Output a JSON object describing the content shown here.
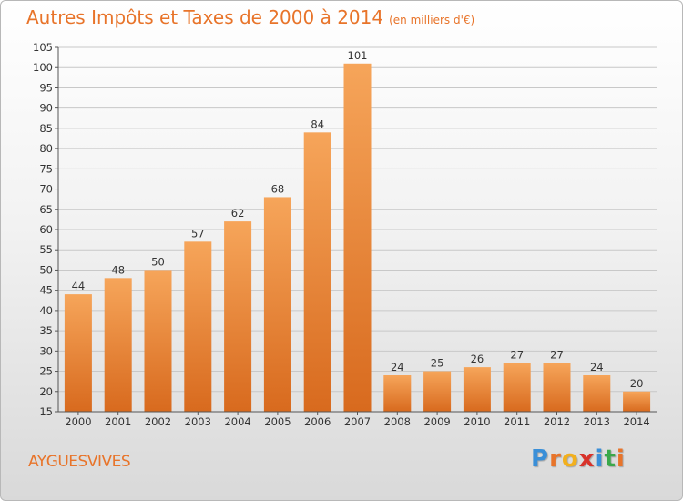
{
  "chart_data": {
    "type": "bar",
    "title": "Autres Impôts et Taxes de 2000 à 2014",
    "unit": "(en milliers d'€)",
    "categories": [
      "2000",
      "2001",
      "2002",
      "2003",
      "2004",
      "2005",
      "2006",
      "2007",
      "2008",
      "2009",
      "2010",
      "2011",
      "2012",
      "2013",
      "2014"
    ],
    "values": [
      44,
      48,
      50,
      57,
      62,
      68,
      84,
      101,
      24,
      25,
      26,
      27,
      27,
      24,
      20
    ],
    "ylim": [
      15,
      105
    ],
    "yticks": [
      15,
      20,
      25,
      30,
      35,
      40,
      45,
      50,
      55,
      60,
      65,
      70,
      75,
      80,
      85,
      90,
      95,
      100,
      105
    ],
    "grid": true,
    "bar_color": "#e8742a"
  },
  "commune": "AYGUESVIVES",
  "logo": {
    "letters": [
      "P",
      "r",
      "o",
      "x",
      "i",
      "t",
      "i"
    ],
    "colors": [
      "#3a8fd8",
      "#e8742a",
      "#f2b01e",
      "#d8322a",
      "#3a8fd8",
      "#3aa84a",
      "#e8742a"
    ]
  }
}
